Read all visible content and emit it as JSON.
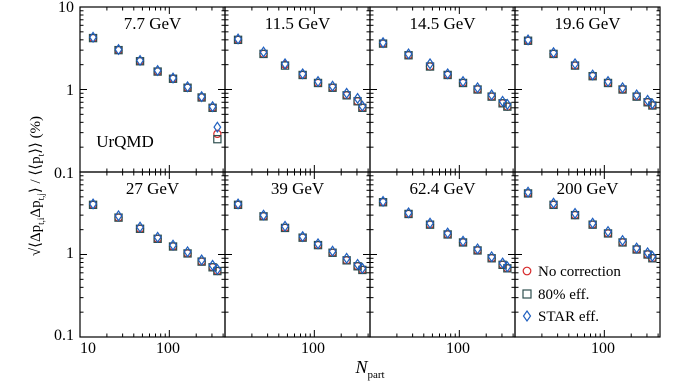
{
  "figure": {
    "ylabel_main": "√⟨Δp",
    "ylabel_sub1": "t,i",
    "ylabel_mid": "Δp",
    "ylabel_sub2": "t,j",
    "ylabel_mid2": "⟩ / ⟨⟨p",
    "ylabel_sub3": "t",
    "ylabel_end": "⟩⟩  (%)",
    "xlabel_main": "N",
    "xlabel_sub": "part",
    "model_label": "UrQMD"
  },
  "colors": {
    "no_correction": "#d62728",
    "eff80": "#2f4f4f",
    "star_eff": "#1f5fbf",
    "frame": "#000000"
  },
  "chart_data": {
    "type": "scatter",
    "x_scale": "log",
    "y_scale": "log",
    "xlim": [
      10,
      420
    ],
    "ylim": [
      0.1,
      10
    ],
    "x_ticks": [
      10,
      100
    ],
    "y_ticks_top": [
      10,
      1
    ],
    "y_ticks_bottom": [
      0.1,
      1
    ],
    "y_tick_labels": [
      "10",
      "1",
      "0.1",
      "1",
      "0.1"
    ],
    "x_tick_labels": [
      "10",
      "100",
      "100",
      "100",
      "100"
    ],
    "legend": {
      "placement": "bottom-right panel",
      "entries": [
        {
          "name": "No correction",
          "marker": "circle",
          "color_key": "no_correction"
        },
        {
          "name": "80% eff.",
          "marker": "square",
          "color_key": "eff80"
        },
        {
          "name": "STAR eff.",
          "marker": "diamond",
          "color_key": "star_eff"
        }
      ]
    },
    "panels": [
      {
        "label": "7.7 GeV",
        "x": [
          14,
          27,
          47,
          74,
          110,
          160,
          230,
          305,
          345
        ],
        "series": [
          {
            "name": "No correction",
            "values": [
              4.2,
              3.0,
              2.2,
              1.65,
              1.35,
              1.05,
              0.8,
              0.6,
              0.29
            ]
          },
          {
            "name": "80% eff.",
            "values": [
              4.2,
              3.0,
              2.2,
              1.65,
              1.35,
              1.05,
              0.8,
              0.6,
              0.25
            ]
          },
          {
            "name": "STAR eff.",
            "values": [
              4.3,
              3.05,
              2.25,
              1.7,
              1.38,
              1.08,
              0.82,
              0.62,
              0.35
            ]
          }
        ]
      },
      {
        "label": "11.5 GeV",
        "x": [
          14,
          27,
          47,
          74,
          110,
          160,
          230,
          305,
          345
        ],
        "series": [
          {
            "name": "No correction",
            "values": [
              4.0,
              2.7,
              2.0,
              1.5,
              1.2,
              1.05,
              0.85,
              0.72,
              0.6
            ]
          },
          {
            "name": "80% eff.",
            "values": [
              4.0,
              2.7,
              1.95,
              1.5,
              1.2,
              1.05,
              0.85,
              0.72,
              0.6
            ]
          },
          {
            "name": "STAR eff.",
            "values": [
              4.1,
              2.85,
              2.05,
              1.55,
              1.25,
              1.1,
              0.9,
              0.78,
              0.63
            ]
          }
        ]
      },
      {
        "label": "14.5 GeV",
        "x": [
          14,
          27,
          47,
          74,
          110,
          160,
          230,
          305,
          345
        ],
        "series": [
          {
            "name": "No correction",
            "values": [
              3.6,
              2.6,
              1.9,
              1.5,
              1.2,
              1.0,
              0.82,
              0.68,
              0.62
            ]
          },
          {
            "name": "80% eff.",
            "values": [
              3.6,
              2.6,
              1.9,
              1.5,
              1.2,
              1.0,
              0.82,
              0.68,
              0.62
            ]
          },
          {
            "name": "STAR eff.",
            "values": [
              3.7,
              2.7,
              2.05,
              1.55,
              1.25,
              1.05,
              0.86,
              0.72,
              0.66
            ]
          }
        ]
      },
      {
        "label": "19.6 GeV",
        "x": [
          14,
          27,
          47,
          74,
          110,
          160,
          230,
          305,
          345
        ],
        "series": [
          {
            "name": "No correction",
            "values": [
              3.9,
              2.7,
              1.95,
              1.45,
              1.2,
              1.0,
              0.82,
              0.7,
              0.64
            ]
          },
          {
            "name": "80% eff.",
            "values": [
              3.9,
              2.7,
              1.95,
              1.45,
              1.2,
              1.0,
              0.82,
              0.7,
              0.64
            ]
          },
          {
            "name": "STAR eff.",
            "values": [
              4.0,
              2.8,
              2.05,
              1.5,
              1.25,
              1.05,
              0.86,
              0.74,
              0.67
            ]
          }
        ]
      },
      {
        "label": "27 GeV",
        "x": [
          14,
          27,
          47,
          74,
          110,
          160,
          230,
          305,
          345
        ],
        "series": [
          {
            "name": "No correction",
            "values": [
              4.0,
              2.8,
              2.05,
              1.55,
              1.25,
              1.03,
              0.82,
              0.7,
              0.63
            ]
          },
          {
            "name": "80% eff.",
            "values": [
              4.0,
              2.8,
              2.05,
              1.55,
              1.25,
              1.03,
              0.82,
              0.7,
              0.63
            ]
          },
          {
            "name": "STAR eff.",
            "values": [
              4.1,
              2.95,
              2.15,
              1.62,
              1.3,
              1.08,
              0.86,
              0.74,
              0.66
            ]
          }
        ]
      },
      {
        "label": "39 GeV",
        "x": [
          14,
          27,
          47,
          74,
          110,
          160,
          230,
          305,
          345
        ],
        "series": [
          {
            "name": "No correction",
            "values": [
              4.0,
              2.9,
              2.1,
              1.6,
              1.3,
              1.05,
              0.85,
              0.72,
              0.65
            ]
          },
          {
            "name": "80% eff.",
            "values": [
              4.0,
              2.9,
              2.1,
              1.6,
              1.3,
              1.05,
              0.85,
              0.72,
              0.65
            ]
          },
          {
            "name": "STAR eff.",
            "values": [
              4.1,
              3.0,
              2.2,
              1.65,
              1.35,
              1.1,
              0.9,
              0.76,
              0.68
            ]
          }
        ]
      },
      {
        "label": "62.4 GeV",
        "x": [
          14,
          27,
          47,
          74,
          110,
          160,
          230,
          305,
          345
        ],
        "series": [
          {
            "name": "No correction",
            "values": [
              4.3,
              3.1,
              2.3,
              1.75,
              1.4,
              1.12,
              0.9,
              0.75,
              0.68
            ]
          },
          {
            "name": "80% eff.",
            "values": [
              4.3,
              3.1,
              2.3,
              1.75,
              1.4,
              1.12,
              0.9,
              0.75,
              0.68
            ]
          },
          {
            "name": "STAR eff.",
            "values": [
              4.4,
              3.2,
              2.4,
              1.82,
              1.45,
              1.17,
              0.94,
              0.79,
              0.71
            ]
          }
        ]
      },
      {
        "label": "200 GeV",
        "x": [
          14,
          27,
          47,
          74,
          110,
          160,
          230,
          305,
          345
        ],
        "series": [
          {
            "name": "No correction",
            "values": [
              5.5,
              4.0,
              3.0,
              2.3,
              1.8,
              1.4,
              1.15,
              1.0,
              0.9
            ]
          },
          {
            "name": "80% eff.",
            "values": [
              5.5,
              4.0,
              3.0,
              2.3,
              1.8,
              1.4,
              1.15,
              1.0,
              0.9
            ]
          },
          {
            "name": "STAR eff.",
            "values": [
              5.7,
              4.2,
              3.15,
              2.4,
              1.9,
              1.48,
              1.2,
              1.05,
              0.95
            ]
          }
        ]
      }
    ]
  }
}
